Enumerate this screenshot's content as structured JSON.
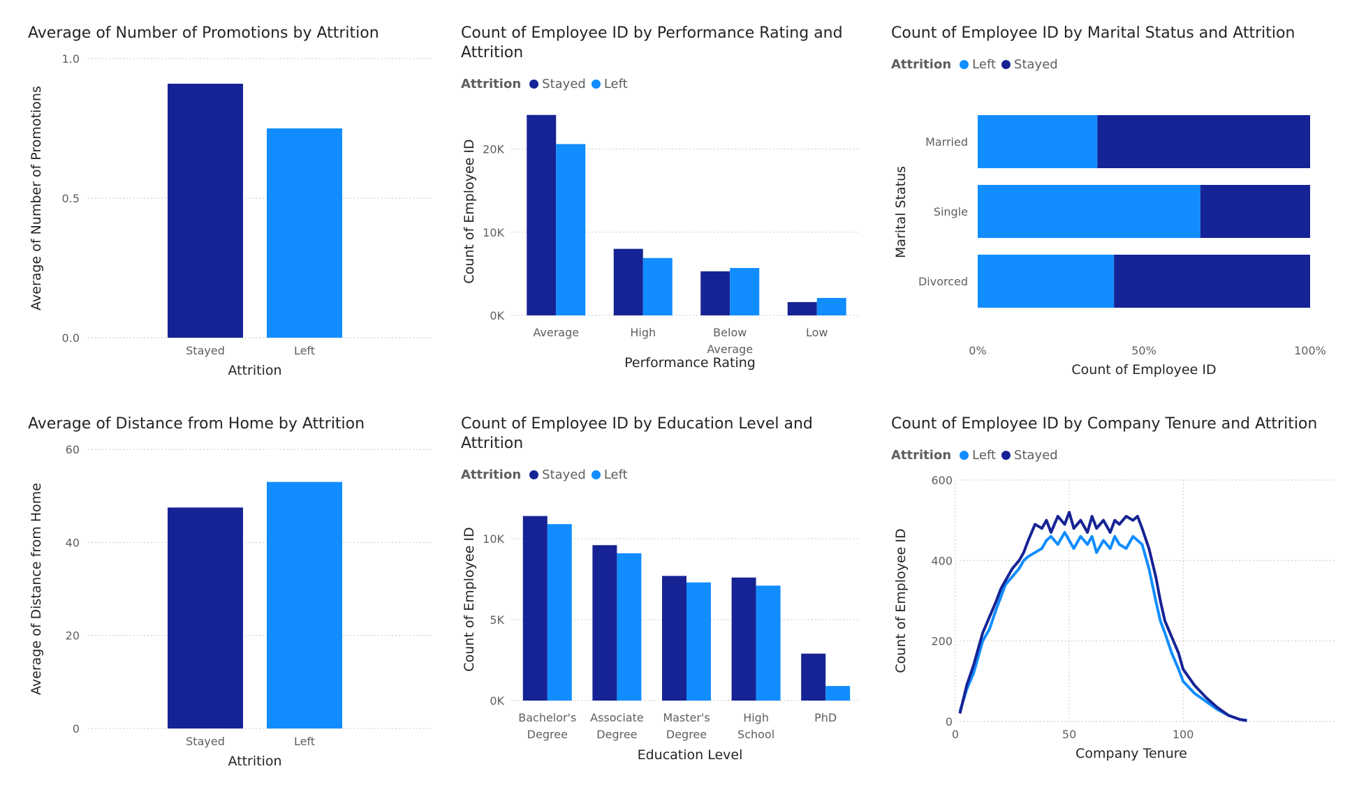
{
  "colors": {
    "stayed": "#162394",
    "left": "#118dff"
  },
  "legend_title": "Attrition",
  "chart_data": [
    {
      "id": "promotions",
      "type": "bar",
      "title": "Average of Number of Promotions by Attrition",
      "xlabel": "Attrition",
      "ylabel": "Average of Number of Promotions",
      "categories": [
        "Stayed",
        "Left"
      ],
      "values": [
        0.91,
        0.75
      ],
      "ylim": [
        0,
        1.0
      ],
      "yticks": [
        "0.0",
        "0.5",
        "1.0"
      ],
      "ytick_values": [
        0,
        0.5,
        1.0
      ]
    },
    {
      "id": "performance",
      "type": "bar",
      "title": "Count of Employee ID by Performance Rating and Attrition",
      "xlabel": "Performance Rating",
      "ylabel": "Count of Employee ID",
      "categories": [
        [
          "Average"
        ],
        [
          "High"
        ],
        [
          "Below",
          "Average"
        ],
        [
          "Low"
        ]
      ],
      "series": [
        {
          "name": "Stayed",
          "values": [
            24100,
            8000,
            5300,
            1600
          ]
        },
        {
          "name": "Left",
          "values": [
            20600,
            6900,
            5700,
            2100
          ]
        }
      ],
      "ylim": [
        0,
        25000
      ],
      "yticks": [
        "0K",
        "10K",
        "20K"
      ],
      "ytick_values": [
        0,
        10000,
        20000
      ],
      "grid": true,
      "legend": "top-left"
    },
    {
      "id": "marital",
      "type": "bar",
      "orientation": "horizontal-stacked-100",
      "title": "Count of Employee ID by Marital Status and Attrition",
      "xlabel": "Count of Employee ID",
      "ylabel": "Marital Status",
      "categories": [
        "Married",
        "Single",
        "Divorced"
      ],
      "series": [
        {
          "name": "Left",
          "values": [
            36,
            67,
            41
          ]
        },
        {
          "name": "Stayed",
          "values": [
            64,
            33,
            59
          ]
        }
      ],
      "xticks": [
        "0%",
        "50%",
        "100%"
      ],
      "xtick_values": [
        0,
        50,
        100
      ],
      "legend": "top-left"
    },
    {
      "id": "distance",
      "type": "bar",
      "title": "Average of Distance from Home by Attrition",
      "xlabel": "Attrition",
      "ylabel": "Average of Distance from Home",
      "categories": [
        "Stayed",
        "Left"
      ],
      "values": [
        47.5,
        53
      ],
      "ylim": [
        0,
        60
      ],
      "yticks": [
        "0",
        "20",
        "40",
        "60"
      ],
      "ytick_values": [
        0,
        20,
        40,
        60
      ]
    },
    {
      "id": "education",
      "type": "bar",
      "title": "Count of Employee ID by Education Level and Attrition",
      "xlabel": "Education Level",
      "ylabel": "Count of Employee ID",
      "categories": [
        [
          "Bachelor's",
          "Degree"
        ],
        [
          "Associate",
          "Degree"
        ],
        [
          "Master's",
          "Degree"
        ],
        [
          "High",
          "School"
        ],
        [
          "PhD"
        ]
      ],
      "series": [
        {
          "name": "Stayed",
          "values": [
            11400,
            9600,
            7700,
            7600,
            2900
          ]
        },
        {
          "name": "Left",
          "values": [
            10900,
            9100,
            7300,
            7100,
            900
          ]
        }
      ],
      "ylim": [
        0,
        12500
      ],
      "yticks": [
        "0K",
        "5K",
        "10K"
      ],
      "ytick_values": [
        0,
        5000,
        10000
      ],
      "grid": true,
      "legend": "top-left"
    },
    {
      "id": "tenure",
      "type": "line",
      "title": "Count of Employee ID by Company Tenure and Attrition",
      "xlabel": "Company Tenure",
      "ylabel": "Count of Employee ID",
      "xlim": [
        0,
        130
      ],
      "ylim": [
        0,
        600
      ],
      "xticks": [
        "0",
        "50",
        "100"
      ],
      "xtick_values": [
        0,
        50,
        100
      ],
      "yticks": [
        "0",
        "200",
        "400",
        "600"
      ],
      "ytick_values": [
        0,
        200,
        400,
        600
      ],
      "legend": "top-left",
      "series": [
        {
          "name": "Left",
          "x": [
            2,
            5,
            8,
            10,
            12,
            15,
            18,
            20,
            22,
            25,
            28,
            30,
            32,
            35,
            38,
            40,
            42,
            45,
            48,
            50,
            52,
            55,
            58,
            60,
            62,
            65,
            68,
            70,
            72,
            75,
            78,
            80,
            82,
            85,
            88,
            90,
            92,
            95,
            98,
            100,
            105,
            110,
            115,
            120,
            125,
            128
          ],
          "y": [
            25,
            80,
            120,
            160,
            200,
            230,
            280,
            310,
            340,
            360,
            380,
            400,
            410,
            420,
            430,
            450,
            460,
            440,
            470,
            450,
            430,
            460,
            440,
            460,
            420,
            450,
            430,
            460,
            440,
            430,
            460,
            450,
            440,
            380,
            300,
            250,
            220,
            170,
            130,
            100,
            70,
            50,
            30,
            15,
            5,
            3
          ]
        },
        {
          "name": "Stayed",
          "x": [
            2,
            5,
            8,
            10,
            12,
            15,
            18,
            20,
            22,
            25,
            28,
            30,
            32,
            35,
            38,
            40,
            42,
            45,
            48,
            50,
            52,
            55,
            58,
            60,
            62,
            65,
            68,
            70,
            72,
            75,
            78,
            80,
            82,
            85,
            88,
            90,
            92,
            95,
            98,
            100,
            105,
            110,
            115,
            120,
            125,
            128
          ],
          "y": [
            20,
            90,
            140,
            180,
            220,
            260,
            300,
            330,
            350,
            380,
            400,
            420,
            450,
            490,
            480,
            500,
            470,
            510,
            490,
            520,
            480,
            500,
            470,
            510,
            480,
            500,
            470,
            500,
            490,
            510,
            500,
            510,
            480,
            430,
            360,
            300,
            250,
            210,
            170,
            130,
            90,
            60,
            35,
            15,
            5,
            2
          ]
        }
      ]
    }
  ]
}
